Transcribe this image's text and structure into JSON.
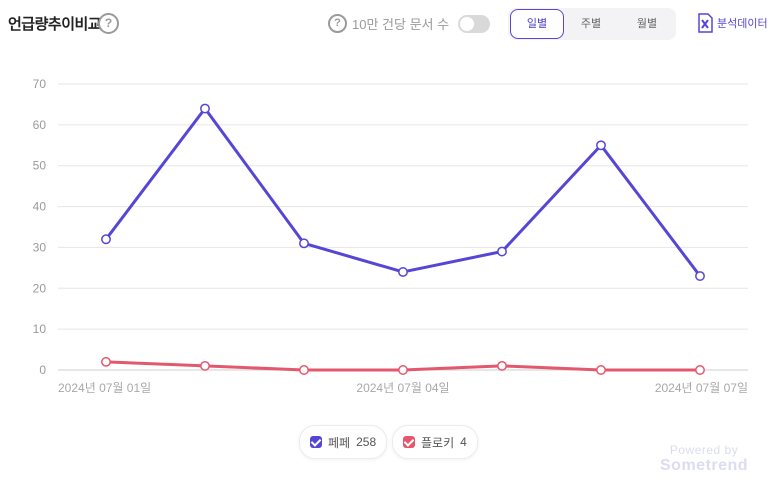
{
  "header": {
    "title": "언급량추이비교",
    "help_icon": "question-circle-icon",
    "per10k_label": "10만 건당 문서 수",
    "per10k_enabled": false,
    "periods": [
      "일별",
      "주별",
      "월별"
    ],
    "selected_period": "일별",
    "export_label": "분석데이터",
    "export_icon": "excel-icon"
  },
  "chart_data": {
    "type": "line",
    "x": [
      "2024년 07월 01일",
      "2024년 07월 02일",
      "2024년 07월 03일",
      "2024년 07월 04일",
      "2024년 07월 05일",
      "2024년 07월 06일",
      "2024년 07월 07일"
    ],
    "x_tick_labels": [
      "2024년 07월 01일",
      "",
      "",
      "2024년 07월 04일",
      "",
      "",
      "2024년 07월 07일"
    ],
    "series": [
      {
        "name": "페페",
        "total": "258",
        "color": "#5646d6",
        "values": [
          32,
          64,
          31,
          24,
          29,
          55,
          23
        ]
      },
      {
        "name": "플로키",
        "total": "4",
        "color": "#e4586e",
        "values": [
          2,
          1,
          0,
          0,
          1,
          0,
          0
        ]
      }
    ],
    "ylim": [
      0,
      70
    ],
    "yticks": [
      0,
      10,
      20,
      30,
      40,
      50,
      60,
      70
    ],
    "grid": true,
    "legend_position": "bottom"
  },
  "watermark": {
    "line1": "Powered by",
    "line2": "Sometrend"
  }
}
